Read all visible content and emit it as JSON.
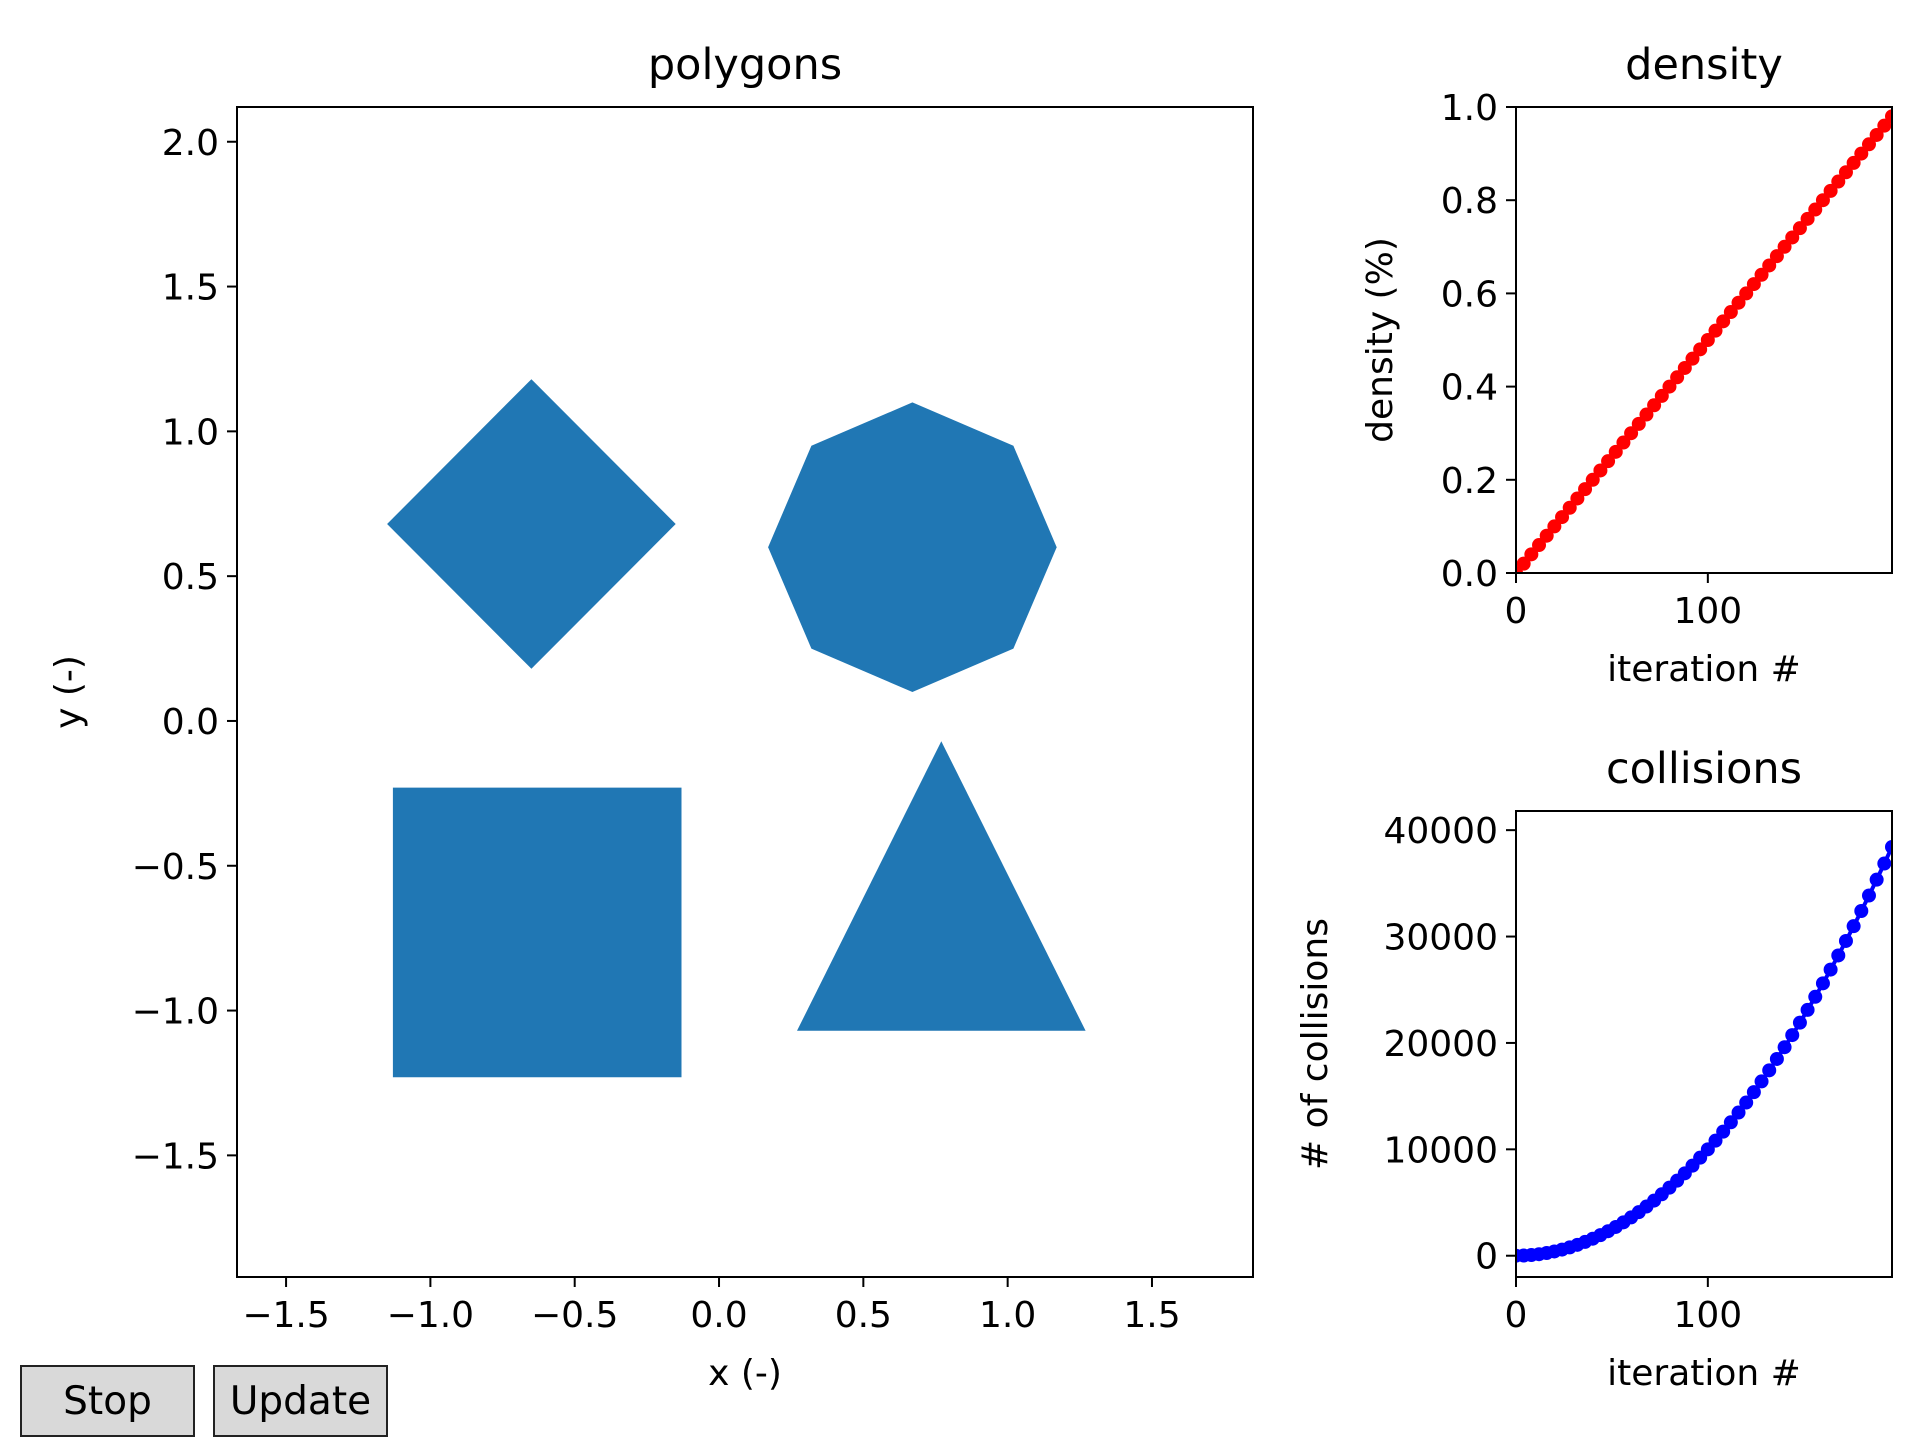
{
  "chart_data": [
    {
      "type": "polygon",
      "title": "polygons",
      "xlabel": "x (-)",
      "ylabel": "y (-)",
      "xlim": [
        -1.67,
        1.85
      ],
      "ylim": [
        -1.92,
        2.12
      ],
      "xticks": [
        -1.5,
        -1.0,
        -0.5,
        0.0,
        0.5,
        1.0,
        1.5
      ],
      "xtick_labels": [
        "−1.5",
        "−1.0",
        "−0.5",
        "0.0",
        "0.5",
        "1.0",
        "1.5"
      ],
      "yticks": [
        -1.5,
        -1.0,
        -0.5,
        0.0,
        0.5,
        1.0,
        1.5,
        2.0
      ],
      "ytick_labels": [
        "−1.5",
        "−1.0",
        "−0.5",
        "0.0",
        "0.5",
        "1.0",
        "1.5",
        "2.0"
      ],
      "fill_color": "#2077b4",
      "polygons": [
        {
          "name": "diamond",
          "points": [
            [
              -0.65,
              1.18
            ],
            [
              -0.15,
              0.68
            ],
            [
              -0.65,
              0.18
            ],
            [
              -1.15,
              0.68
            ]
          ]
        },
        {
          "name": "octagon",
          "points": [
            [
              0.67,
              1.1
            ],
            [
              1.02,
              0.95
            ],
            [
              1.17,
              0.6
            ],
            [
              1.02,
              0.25
            ],
            [
              0.67,
              0.1
            ],
            [
              0.32,
              0.25
            ],
            [
              0.17,
              0.6
            ],
            [
              0.32,
              0.95
            ]
          ]
        },
        {
          "name": "square",
          "points": [
            [
              -1.13,
              -0.23
            ],
            [
              -0.13,
              -0.23
            ],
            [
              -0.13,
              -1.23
            ],
            [
              -1.13,
              -1.23
            ]
          ]
        },
        {
          "name": "triangle",
          "points": [
            [
              0.77,
              -0.07
            ],
            [
              1.27,
              -1.07
            ],
            [
              0.27,
              -1.07
            ]
          ]
        }
      ]
    },
    {
      "type": "scatter",
      "title": "density",
      "xlabel": "iteration #",
      "ylabel": "density (%)",
      "xlim": [
        0,
        196
      ],
      "ylim": [
        0.0,
        1.0
      ],
      "xticks": [
        0,
        100
      ],
      "xtick_labels": [
        "0",
        "100"
      ],
      "yticks": [
        0.0,
        0.2,
        0.4,
        0.6,
        0.8,
        1.0
      ],
      "ytick_labels": [
        "0.0",
        "0.2",
        "0.4",
        "0.6",
        "0.8",
        "1.0"
      ],
      "color": "#ff0000",
      "series": [
        {
          "x_start": 0,
          "x_step": 4,
          "count": 50,
          "y_start": 0.0,
          "y_step": 0.02
        }
      ]
    },
    {
      "type": "scatter",
      "title": "collisions",
      "xlabel": "iteration #",
      "ylabel": "# of collisions",
      "xlim": [
        0,
        196
      ],
      "ylim": [
        -2000,
        41800
      ],
      "xticks": [
        0,
        100
      ],
      "xtick_labels": [
        "0",
        "100"
      ],
      "yticks": [
        0,
        10000,
        20000,
        30000,
        40000
      ],
      "ytick_labels": [
        "0",
        "10000",
        "20000",
        "30000",
        "40000"
      ],
      "color": "#0000ff",
      "series": [
        {
          "x_start": 0,
          "x_step": 4,
          "count": 50,
          "formula": "y = x^2 / 1.0"
        }
      ]
    }
  ],
  "buttons": {
    "stop_label": "Stop",
    "update_label": "Update"
  }
}
